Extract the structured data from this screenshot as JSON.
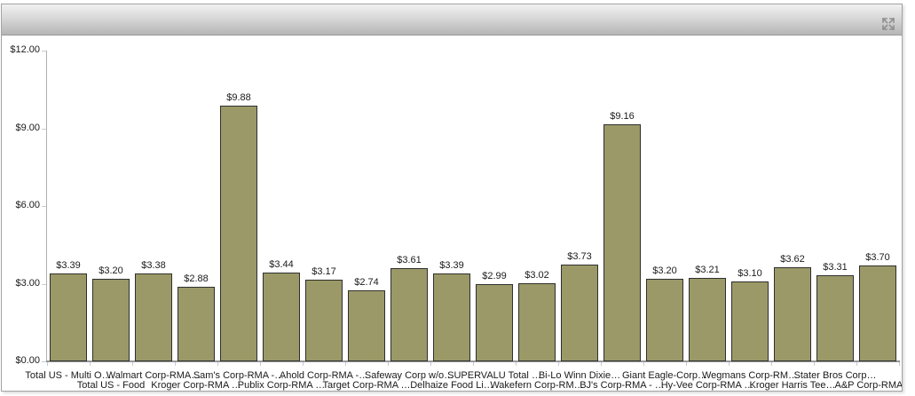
{
  "panel": {
    "header": {
      "title": "",
      "maximize_icon": "maximize-icon"
    }
  },
  "chart_data": {
    "type": "bar",
    "title": "",
    "xlabel": "",
    "ylabel": "",
    "grid": false,
    "legend": "none",
    "ylim": [
      0,
      12
    ],
    "y_tick_values": [
      0,
      3,
      6,
      9,
      12
    ],
    "y_tick_labels": [
      "$0.00",
      "$3.00",
      "$6.00",
      "$9.00",
      "$12.00"
    ],
    "categories": [
      "Total US - Multi O…",
      "Total US - Food",
      "Walmart Corp-RMA…",
      "Kroger Corp-RMA …",
      "Sam's Corp-RMA -…",
      "Publix Corp-RMA …",
      "Ahold Corp-RMA -…",
      "Target Corp-RMA …",
      "Safeway Corp w/o…",
      "Delhaize Food Li…",
      "SUPERVALU Total …",
      "Wakefern Corp-RM…",
      "Bi-Lo Winn Dixie…",
      "BJ's Corp-RMA - …",
      "Giant Eagle-Corp…",
      "Hy-Vee Corp-RMA …",
      "Wegmans Corp-RM…",
      "Kroger Harris Tee…",
      "Stater Bros Corp…",
      "A&P Corp-RMA - …"
    ],
    "values": [
      3.39,
      3.2,
      3.38,
      2.88,
      9.88,
      3.44,
      3.17,
      2.74,
      3.61,
      3.39,
      2.99,
      3.02,
      3.73,
      9.16,
      3.2,
      3.21,
      3.1,
      3.62,
      3.31,
      3.7
    ],
    "value_labels": [
      "$3.39",
      "$3.20",
      "$3.38",
      "$2.88",
      "$9.88",
      "$3.44",
      "$3.17",
      "$2.74",
      "$3.61",
      "$3.39",
      "$2.99",
      "$3.02",
      "$3.73",
      "$9.16",
      "$3.20",
      "$3.21",
      "$3.10",
      "$3.62",
      "$3.31",
      "$3.70"
    ],
    "bar_color": "#9b9967",
    "bar_border_color": "#2f2f2f",
    "axis_color": "#969696",
    "tick_color": "#c3ccd5",
    "label_color": "#1a1a1a"
  }
}
